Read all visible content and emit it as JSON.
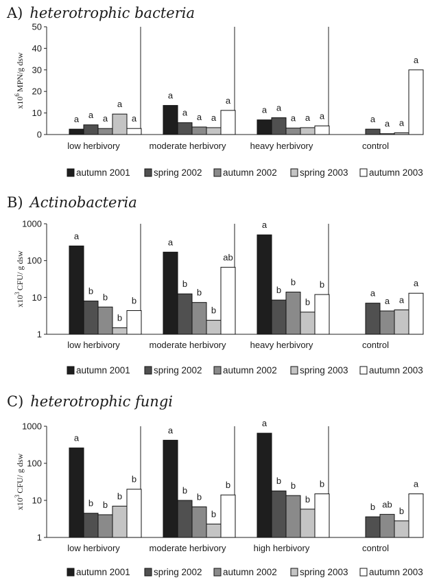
{
  "colors": {
    "autumn 2001": "#1e1e1e",
    "spring 2002": "#505050",
    "autumn 2002": "#8a8a8a",
    "spring 2003": "#c4c4c4",
    "autumn 2003": "#ffffff"
  },
  "chart_data": [
    {
      "type": "bar",
      "panel_label": "A)",
      "title": "heterotrophic bacteria",
      "ylabel": "x10^6 MPN/g dsw",
      "ylabel_base": "x10",
      "ylabel_exp": "6",
      "ylabel_rest": "MPN/g dsw",
      "yscale": "linear",
      "ylim": [
        0,
        50
      ],
      "yticks": [
        "0",
        "10",
        "20",
        "30",
        "40",
        "50"
      ],
      "categories": [
        "low herbivory",
        "moderate herbivory",
        "heavy herbivory",
        "control"
      ],
      "series": [
        {
          "name": "autumn 2001",
          "values": [
            2.5,
            13.5,
            6.8,
            null
          ],
          "labels": [
            "a",
            "a",
            "a",
            ""
          ]
        },
        {
          "name": "spring 2002",
          "values": [
            4.5,
            5.5,
            7.8,
            2.5
          ],
          "labels": [
            "a",
            "a",
            "a",
            "a"
          ]
        },
        {
          "name": "autumn 2002",
          "values": [
            2.8,
            3.5,
            3.0,
            0.4
          ],
          "labels": [
            "a",
            "a",
            "a",
            "a"
          ]
        },
        {
          "name": "spring 2003",
          "values": [
            9.5,
            3.2,
            3.2,
            0.8
          ],
          "labels": [
            "a",
            "a",
            "a",
            "a"
          ]
        },
        {
          "name": "autumn 2003",
          "values": [
            2.8,
            11.2,
            4.0,
            30.0
          ],
          "labels": [
            "a",
            "a",
            "a",
            "a"
          ]
        }
      ],
      "legend": [
        "autumn 2001",
        "spring 2002",
        "autumn 2002",
        "spring 2003",
        "autumn 2003"
      ],
      "legend_position": "bottom"
    },
    {
      "type": "bar",
      "panel_label": "B)",
      "title": "Actinobacteria",
      "ylabel": "x10^3 CFU/ g dsw",
      "ylabel_base": "x10",
      "ylabel_exp": "3",
      "ylabel_rest": "CFU/ g dsw",
      "yscale": "log",
      "ylim": [
        1,
        1000
      ],
      "yticks": [
        "1",
        "10",
        "100",
        "1000"
      ],
      "categories": [
        "low herbivory",
        "moderate herbivory",
        "heavy herbivory",
        "control"
      ],
      "series": [
        {
          "name": "autumn 2001",
          "values": [
            250,
            170,
            500,
            null
          ],
          "labels": [
            "a",
            "a",
            "a",
            ""
          ]
        },
        {
          "name": "spring 2002",
          "values": [
            8,
            12.5,
            8.5,
            7
          ],
          "labels": [
            "b",
            "b",
            "b",
            "a"
          ]
        },
        {
          "name": "autumn 2002",
          "values": [
            5.5,
            7.3,
            14,
            4.3
          ],
          "labels": [
            "b",
            "b",
            "b",
            "a"
          ]
        },
        {
          "name": "spring 2003",
          "values": [
            1.5,
            2.4,
            4,
            4.6
          ],
          "labels": [
            "b",
            "b",
            "b",
            "a"
          ]
        },
        {
          "name": "autumn 2003",
          "values": [
            4.4,
            66,
            12,
            13
          ],
          "labels": [
            "b",
            "ab",
            "b",
            "a"
          ]
        }
      ],
      "legend": [
        "autumn 2001",
        "spring 2002",
        "autumn 2002",
        "spring 2003",
        "autumn 2003"
      ],
      "legend_position": "bottom"
    },
    {
      "type": "bar",
      "panel_label": "C)",
      "title": "heterotrophic fungi",
      "ylabel": "x10^3 CFU/ g dsw",
      "ylabel_base": "x10",
      "ylabel_exp": "3",
      "ylabel_rest": "CFU/ g dsw",
      "yscale": "log",
      "ylim": [
        1,
        1000
      ],
      "yticks": [
        "1",
        "10",
        "100",
        "1000"
      ],
      "categories": [
        "low herbivory",
        "moderate herbivory",
        "high herbivory",
        "control"
      ],
      "series": [
        {
          "name": "autumn 2001",
          "values": [
            260,
            420,
            650,
            null
          ],
          "labels": [
            "a",
            "a",
            "a",
            ""
          ]
        },
        {
          "name": "spring 2002",
          "values": [
            4.5,
            10,
            18,
            3.6
          ],
          "labels": [
            "b",
            "b",
            "b",
            "b"
          ]
        },
        {
          "name": "autumn 2002",
          "values": [
            4.1,
            6.7,
            13.5,
            4.2
          ],
          "labels": [
            "b",
            "b",
            "b",
            "ab"
          ]
        },
        {
          "name": "spring 2003",
          "values": [
            7,
            2.3,
            5.8,
            2.8
          ],
          "labels": [
            "b",
            "b",
            "b",
            "b"
          ]
        },
        {
          "name": "autumn 2003",
          "values": [
            20,
            14,
            15,
            15
          ],
          "labels": [
            "b",
            "b",
            "b",
            "a"
          ]
        }
      ],
      "legend": [
        "autumn 2001",
        "spring 2002",
        "autumn 2002",
        "spring 2003",
        "autumn 2003"
      ],
      "legend_position": "bottom"
    }
  ]
}
